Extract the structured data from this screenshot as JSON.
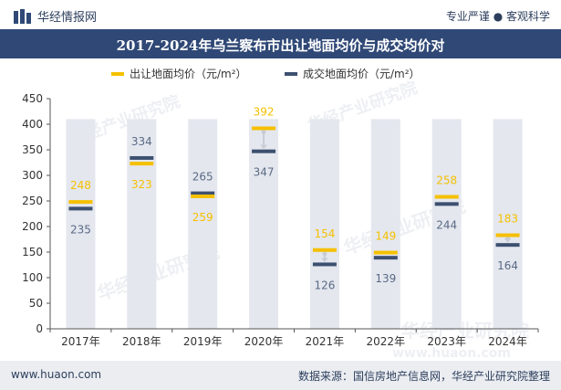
{
  "header": {
    "brand": "华经情报网",
    "tagline": "专业严谨 ● 客观科学"
  },
  "footer": {
    "website": "www.huaon.com",
    "source": "数据来源：国信房地产信息网，华经产业研究院整理"
  },
  "watermark": {
    "text": "华经产业研究院",
    "url": "www.huaon.com"
  },
  "colors": {
    "series1": "#f5c000",
    "series2": "#3d5070",
    "band": "#e4e7ee",
    "title_bg": "#2f4876"
  },
  "chart_data": {
    "type": "floating-bar",
    "title": "2017-2024年乌兰察布市出让地面均价与成交均价对",
    "categories": [
      "2017年",
      "2018年",
      "2019年",
      "2020年",
      "2021年",
      "2022年",
      "2023年",
      "2024年"
    ],
    "series": [
      {
        "name": "出让地面均价（元/m²）",
        "values": [
          248,
          323,
          259,
          392,
          154,
          149,
          258,
          183
        ]
      },
      {
        "name": "成交地面均价（元/m²）",
        "values": [
          235,
          334,
          265,
          347,
          126,
          139,
          244,
          164
        ]
      }
    ],
    "ylim": [
      0,
      450
    ],
    "yticks": [
      0,
      50,
      100,
      150,
      200,
      250,
      300,
      350,
      400,
      450
    ],
    "band_max": 410,
    "legend": "top-center"
  }
}
